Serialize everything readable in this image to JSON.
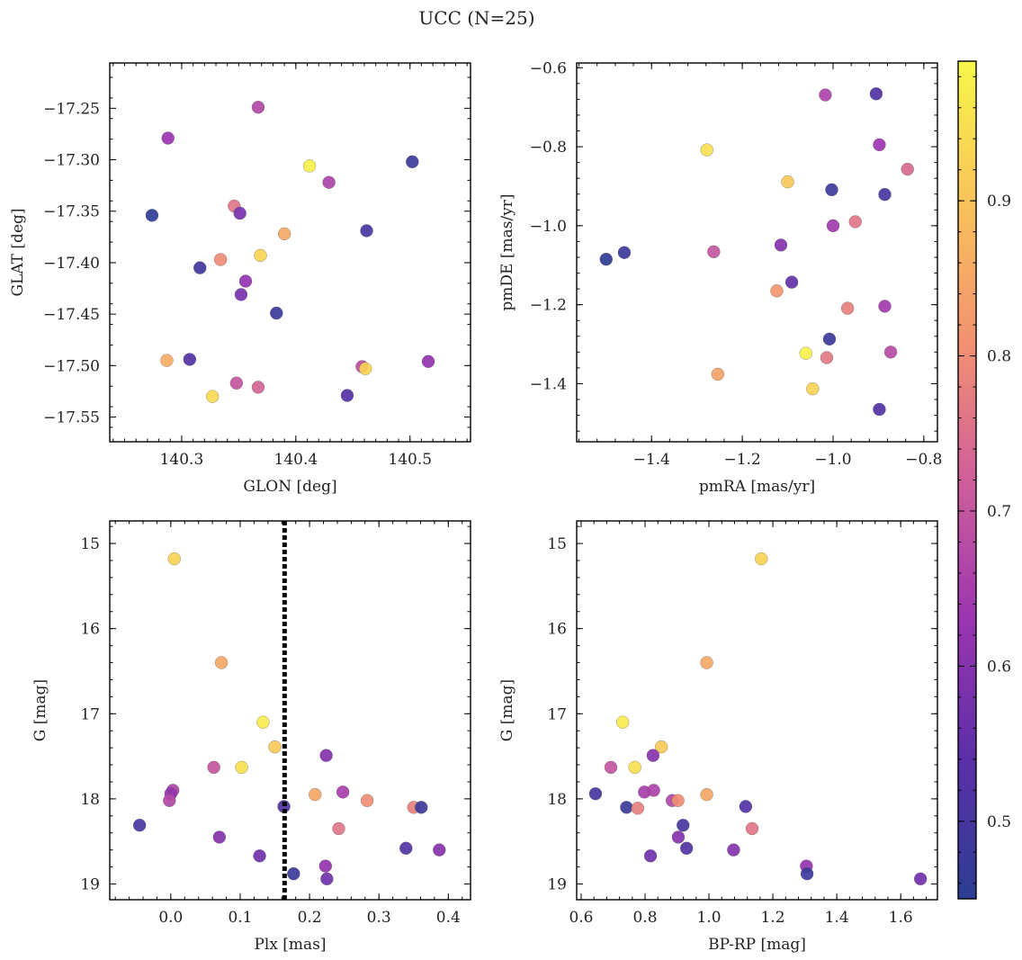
{
  "figure": {
    "suptitle": "UCC (N=25)"
  },
  "colorbar": {
    "range": [
      0.45,
      0.99
    ],
    "ticks": [
      0.5,
      0.6,
      0.7,
      0.8,
      0.9
    ],
    "tick_labels": [
      "0.5",
      "0.6",
      "0.7",
      "0.8",
      "0.9"
    ],
    "colormap": "plasma",
    "colors": [
      "#2c3e93",
      "#5b2fa8",
      "#9b35b0",
      "#cf5f9b",
      "#f29270",
      "#f9c35a",
      "#f7f74a"
    ]
  },
  "chart_data": [
    {
      "type": "scatter",
      "id": "glon-glat",
      "xlabel": "GLON [deg]",
      "ylabel": "GLAT [deg]",
      "xlim": [
        140.237,
        140.553
      ],
      "ylim": [
        -17.574,
        -17.206
      ],
      "xticks": [
        140.3,
        140.4,
        140.5
      ],
      "xtick_labels": [
        "140.3",
        "140.4",
        "140.5"
      ],
      "yticks": [
        -17.25,
        -17.3,
        -17.35,
        -17.4,
        -17.45,
        -17.5,
        -17.55
      ],
      "ytick_labels": [
        "−17.25",
        "−17.30",
        "−17.35",
        "−17.40",
        "−17.45",
        "−17.50",
        "−17.55"
      ],
      "points": [
        {
          "x": 140.367,
          "y": -17.249,
          "c": 0.67
        },
        {
          "x": 140.288,
          "y": -17.279,
          "c": 0.63
        },
        {
          "x": 140.412,
          "y": -17.306,
          "c": 0.98
        },
        {
          "x": 140.502,
          "y": -17.302,
          "c": 0.48
        },
        {
          "x": 140.429,
          "y": -17.322,
          "c": 0.66
        },
        {
          "x": 140.274,
          "y": -17.354,
          "c": 0.46
        },
        {
          "x": 140.346,
          "y": -17.345,
          "c": 0.76
        },
        {
          "x": 140.351,
          "y": -17.352,
          "c": 0.58
        },
        {
          "x": 140.39,
          "y": -17.372,
          "c": 0.85
        },
        {
          "x": 140.462,
          "y": -17.369,
          "c": 0.5
        },
        {
          "x": 140.369,
          "y": -17.393,
          "c": 0.93
        },
        {
          "x": 140.334,
          "y": -17.397,
          "c": 0.8
        },
        {
          "x": 140.316,
          "y": -17.405,
          "c": 0.49
        },
        {
          "x": 140.356,
          "y": -17.418,
          "c": 0.62
        },
        {
          "x": 140.352,
          "y": -17.431,
          "c": 0.58
        },
        {
          "x": 140.383,
          "y": -17.449,
          "c": 0.48
        },
        {
          "x": 140.287,
          "y": -17.495,
          "c": 0.86
        },
        {
          "x": 140.307,
          "y": -17.494,
          "c": 0.52
        },
        {
          "x": 140.458,
          "y": -17.501,
          "c": 0.68
        },
        {
          "x": 140.461,
          "y": -17.503,
          "c": 0.93
        },
        {
          "x": 140.516,
          "y": -17.496,
          "c": 0.62
        },
        {
          "x": 140.348,
          "y": -17.517,
          "c": 0.7
        },
        {
          "x": 140.367,
          "y": -17.521,
          "c": 0.73
        },
        {
          "x": 140.327,
          "y": -17.53,
          "c": 0.94
        },
        {
          "x": 140.445,
          "y": -17.529,
          "c": 0.53
        }
      ]
    },
    {
      "type": "scatter",
      "id": "pmra-pmde",
      "xlabel": "pmRA [mas/yr]",
      "ylabel": "pmDE [mas/yr]",
      "xlim": [
        -1.565,
        -0.77
      ],
      "ylim": [
        -1.547,
        -0.588
      ],
      "xticks": [
        -1.4,
        -1.2,
        -1.0,
        -0.8
      ],
      "xtick_labels": [
        "−1.4",
        "−1.2",
        "−1.0",
        "−0.8"
      ],
      "yticks": [
        -0.6,
        -0.8,
        -1.0,
        -1.2,
        -1.4
      ],
      "ytick_labels": [
        "−0.6",
        "−0.8",
        "−1.0",
        "−1.2",
        "−1.4"
      ],
      "points": [
        {
          "x": -1.017,
          "y": -0.669,
          "c": 0.66
        },
        {
          "x": -0.905,
          "y": -0.666,
          "c": 0.52
        },
        {
          "x": -0.898,
          "y": -0.795,
          "c": 0.63
        },
        {
          "x": -1.278,
          "y": -0.808,
          "c": 0.95
        },
        {
          "x": -0.836,
          "y": -0.857,
          "c": 0.74
        },
        {
          "x": -1.1,
          "y": -0.889,
          "c": 0.91
        },
        {
          "x": -1.003,
          "y": -0.909,
          "c": 0.48
        },
        {
          "x": -0.886,
          "y": -0.921,
          "c": 0.5
        },
        {
          "x": -0.951,
          "y": -0.99,
          "c": 0.76
        },
        {
          "x": -1.0,
          "y": -1.0,
          "c": 0.64
        },
        {
          "x": -1.115,
          "y": -1.049,
          "c": 0.6
        },
        {
          "x": -1.263,
          "y": -1.066,
          "c": 0.7
        },
        {
          "x": -1.46,
          "y": -1.068,
          "c": 0.48
        },
        {
          "x": -1.5,
          "y": -1.085,
          "c": 0.46
        },
        {
          "x": -1.091,
          "y": -1.143,
          "c": 0.55
        },
        {
          "x": -1.124,
          "y": -1.165,
          "c": 0.82
        },
        {
          "x": -0.968,
          "y": -1.209,
          "c": 0.78
        },
        {
          "x": -0.886,
          "y": -1.204,
          "c": 0.64
        },
        {
          "x": -1.008,
          "y": -1.287,
          "c": 0.48
        },
        {
          "x": -1.06,
          "y": -1.323,
          "c": 0.98
        },
        {
          "x": -1.014,
          "y": -1.334,
          "c": 0.77
        },
        {
          "x": -0.873,
          "y": -1.32,
          "c": 0.68
        },
        {
          "x": -1.254,
          "y": -1.376,
          "c": 0.84
        },
        {
          "x": -1.045,
          "y": -1.413,
          "c": 0.93
        },
        {
          "x": -0.898,
          "y": -1.465,
          "c": 0.52
        }
      ]
    },
    {
      "type": "scatter",
      "id": "plx-g",
      "xlabel": "Plx [mas]",
      "ylabel": "G [mag]",
      "xlim": [
        -0.088,
        0.432
      ],
      "ylim": [
        19.185,
        14.735
      ],
      "xticks": [
        0.0,
        0.1,
        0.2,
        0.3,
        0.4
      ],
      "xtick_labels": [
        "0.0",
        "0.1",
        "0.2",
        "0.3",
        "0.4"
      ],
      "yticks": [
        15,
        16,
        17,
        18,
        19
      ],
      "ytick_labels": [
        "15",
        "16",
        "17",
        "18",
        "19"
      ],
      "vline": 0.164,
      "points": [
        {
          "x": 0.005,
          "y": 15.18,
          "c": 0.93
        },
        {
          "x": 0.073,
          "y": 16.4,
          "c": 0.85
        },
        {
          "x": 0.133,
          "y": 17.1,
          "c": 0.97
        },
        {
          "x": 0.15,
          "y": 17.39,
          "c": 0.91
        },
        {
          "x": 0.062,
          "y": 17.63,
          "c": 0.7
        },
        {
          "x": 0.102,
          "y": 17.63,
          "c": 0.95
        },
        {
          "x": 0.224,
          "y": 17.49,
          "c": 0.6
        },
        {
          "x": 0.003,
          "y": 17.9,
          "c": 0.66
        },
        {
          "x": 0.0,
          "y": 17.94,
          "c": 0.62
        },
        {
          "x": -0.002,
          "y": 18.02,
          "c": 0.67
        },
        {
          "x": 0.208,
          "y": 17.95,
          "c": 0.85
        },
        {
          "x": 0.248,
          "y": 17.92,
          "c": 0.65
        },
        {
          "x": 0.283,
          "y": 18.02,
          "c": 0.8
        },
        {
          "x": 0.163,
          "y": 18.09,
          "c": 0.52
        },
        {
          "x": 0.35,
          "y": 18.1,
          "c": 0.78
        },
        {
          "x": 0.361,
          "y": 18.1,
          "c": 0.48
        },
        {
          "x": -0.045,
          "y": 18.31,
          "c": 0.5
        },
        {
          "x": 0.242,
          "y": 18.35,
          "c": 0.76
        },
        {
          "x": 0.07,
          "y": 18.45,
          "c": 0.6
        },
        {
          "x": 0.339,
          "y": 18.58,
          "c": 0.52
        },
        {
          "x": 0.387,
          "y": 18.6,
          "c": 0.6
        },
        {
          "x": 0.128,
          "y": 18.67,
          "c": 0.57
        },
        {
          "x": 0.223,
          "y": 18.79,
          "c": 0.62
        },
        {
          "x": 0.177,
          "y": 18.88,
          "c": 0.48
        },
        {
          "x": 0.225,
          "y": 18.94,
          "c": 0.57
        }
      ]
    },
    {
      "type": "scatter",
      "id": "bprp-g",
      "xlabel": "BP-RP [mag]",
      "ylabel": "G [mag]",
      "xlim": [
        0.586,
        1.715
      ],
      "ylim": [
        19.185,
        14.735
      ],
      "xticks": [
        0.6,
        0.8,
        1.0,
        1.2,
        1.4,
        1.6
      ],
      "xtick_labels": [
        "0.6",
        "0.8",
        "1.0",
        "1.2",
        "1.4",
        "1.6"
      ],
      "yticks": [
        15,
        16,
        17,
        18,
        19
      ],
      "ytick_labels": [
        "15",
        "16",
        "17",
        "18",
        "19"
      ],
      "points": [
        {
          "x": 1.164,
          "y": 15.18,
          "c": 0.93
        },
        {
          "x": 0.993,
          "y": 16.4,
          "c": 0.85
        },
        {
          "x": 0.73,
          "y": 17.1,
          "c": 0.97
        },
        {
          "x": 0.851,
          "y": 17.39,
          "c": 0.91
        },
        {
          "x": 0.825,
          "y": 17.49,
          "c": 0.6
        },
        {
          "x": 0.693,
          "y": 17.63,
          "c": 0.7
        },
        {
          "x": 0.768,
          "y": 17.63,
          "c": 0.95
        },
        {
          "x": 0.645,
          "y": 17.94,
          "c": 0.5
        },
        {
          "x": 0.798,
          "y": 17.92,
          "c": 0.65
        },
        {
          "x": 0.827,
          "y": 17.9,
          "c": 0.66
        },
        {
          "x": 0.993,
          "y": 17.95,
          "c": 0.85
        },
        {
          "x": 0.885,
          "y": 18.02,
          "c": 0.67
        },
        {
          "x": 0.903,
          "y": 18.02,
          "c": 0.8
        },
        {
          "x": 0.742,
          "y": 18.1,
          "c": 0.48
        },
        {
          "x": 0.777,
          "y": 18.11,
          "c": 0.78
        },
        {
          "x": 1.115,
          "y": 18.09,
          "c": 0.52
        },
        {
          "x": 0.919,
          "y": 18.31,
          "c": 0.5
        },
        {
          "x": 1.135,
          "y": 18.35,
          "c": 0.76
        },
        {
          "x": 0.904,
          "y": 18.45,
          "c": 0.6
        },
        {
          "x": 0.93,
          "y": 18.58,
          "c": 0.52
        },
        {
          "x": 1.077,
          "y": 18.6,
          "c": 0.6
        },
        {
          "x": 0.817,
          "y": 18.67,
          "c": 0.57
        },
        {
          "x": 1.305,
          "y": 18.79,
          "c": 0.62
        },
        {
          "x": 1.307,
          "y": 18.88,
          "c": 0.48
        },
        {
          "x": 1.662,
          "y": 18.94,
          "c": 0.57
        }
      ]
    }
  ]
}
